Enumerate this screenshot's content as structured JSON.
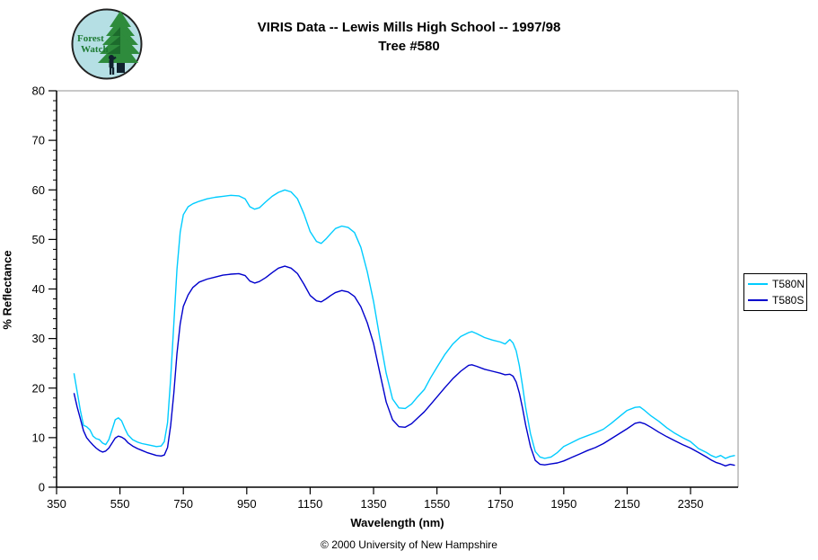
{
  "header": {
    "title": "VIRIS Data -- Lewis Mills High School -- 1997/98",
    "subtitle": "Tree #580"
  },
  "logo": {
    "line1": "Forest",
    "line2": "Watch",
    "bg_color": "#b5dfe4",
    "tree_color": "#2e8b3c",
    "tree_dark_color": "#1c6b2c",
    "trunk_color": "#10212e",
    "text_color": "#1d7a32",
    "border_color": "#222222"
  },
  "footer": {
    "copyright": "© 2000 University of New Hampshire"
  },
  "chart_data": {
    "type": "line",
    "title": "VIRIS Data -- Lewis Mills High School -- 1997/98  Tree #580",
    "xlabel": "Wavelength (nm)",
    "ylabel": "% Reflectance",
    "xlim": [
      350,
      2500
    ],
    "ylim": [
      0,
      80
    ],
    "x_ticks": [
      350,
      550,
      750,
      950,
      1150,
      1350,
      1550,
      1750,
      1950,
      2150,
      2350
    ],
    "y_ticks": [
      0,
      10,
      20,
      30,
      40,
      50,
      60,
      70,
      80
    ],
    "y_minor_step": 2,
    "grid": false,
    "legend_position": "right-outside",
    "frame_color": "#909090",
    "axis_color": "#000000",
    "x": [
      405,
      415,
      425,
      435,
      445,
      455,
      465,
      475,
      485,
      495,
      505,
      515,
      525,
      535,
      545,
      555,
      565,
      575,
      590,
      605,
      620,
      635,
      650,
      665,
      680,
      690,
      700,
      710,
      720,
      730,
      740,
      750,
      765,
      780,
      800,
      825,
      850,
      875,
      900,
      925,
      945,
      960,
      975,
      990,
      1010,
      1030,
      1050,
      1070,
      1090,
      1110,
      1130,
      1150,
      1170,
      1185,
      1200,
      1215,
      1230,
      1250,
      1270,
      1290,
      1310,
      1330,
      1350,
      1370,
      1390,
      1410,
      1430,
      1450,
      1470,
      1490,
      1510,
      1530,
      1550,
      1575,
      1600,
      1625,
      1650,
      1660,
      1675,
      1700,
      1725,
      1750,
      1765,
      1780,
      1790,
      1800,
      1810,
      1820,
      1830,
      1845,
      1860,
      1875,
      1890,
      1910,
      1930,
      1950,
      1975,
      2000,
      2025,
      2050,
      2075,
      2100,
      2125,
      2150,
      2175,
      2190,
      2205,
      2225,
      2250,
      2275,
      2300,
      2325,
      2350,
      2375,
      2400,
      2415,
      2430,
      2445,
      2460,
      2475,
      2490
    ],
    "series": [
      {
        "name": "T580N",
        "color": "#00ccff",
        "values": [
          23.0,
          19.3,
          15.5,
          12.5,
          12.2,
          11.6,
          10.3,
          9.8,
          9.6,
          8.9,
          8.6,
          9.6,
          11.6,
          13.6,
          14.0,
          13.4,
          11.9,
          10.6,
          9.6,
          9.1,
          8.8,
          8.6,
          8.4,
          8.2,
          8.3,
          9.2,
          13.0,
          22.0,
          33.0,
          44.0,
          51.5,
          55.0,
          56.6,
          57.2,
          57.7,
          58.2,
          58.5,
          58.7,
          58.9,
          58.8,
          58.2,
          56.6,
          56.1,
          56.4,
          57.6,
          58.7,
          59.5,
          60.0,
          59.6,
          58.2,
          55.2,
          51.6,
          49.6,
          49.2,
          50.1,
          51.2,
          52.2,
          52.7,
          52.4,
          51.4,
          48.4,
          43.5,
          37.5,
          30.0,
          23.0,
          17.8,
          16.0,
          15.9,
          16.8,
          18.3,
          19.7,
          22.1,
          24.2,
          26.8,
          28.9,
          30.4,
          31.2,
          31.4,
          31.0,
          30.2,
          29.7,
          29.3,
          28.9,
          29.8,
          29.1,
          27.5,
          24.5,
          20.5,
          16.0,
          10.8,
          7.2,
          6.1,
          5.8,
          6.1,
          7.0,
          8.2,
          9.0,
          9.8,
          10.4,
          11.0,
          11.7,
          12.9,
          14.2,
          15.5,
          16.1,
          16.2,
          15.5,
          14.4,
          13.3,
          12.0,
          10.9,
          10.0,
          9.2,
          7.8,
          7.0,
          6.4,
          6.0,
          6.4,
          5.8,
          6.2,
          6.4
        ]
      },
      {
        "name": "T580S",
        "color": "#0000cc",
        "values": [
          19.0,
          16.2,
          13.8,
          11.4,
          10.0,
          9.2,
          8.5,
          7.9,
          7.4,
          7.1,
          7.3,
          7.9,
          8.9,
          9.9,
          10.3,
          10.1,
          9.7,
          9.0,
          8.3,
          7.8,
          7.4,
          7.0,
          6.7,
          6.4,
          6.3,
          6.5,
          8.0,
          12.5,
          19.0,
          27.0,
          33.0,
          36.5,
          38.8,
          40.3,
          41.4,
          42.0,
          42.4,
          42.8,
          43.0,
          43.1,
          42.7,
          41.6,
          41.2,
          41.5,
          42.3,
          43.3,
          44.2,
          44.6,
          44.2,
          43.1,
          41.0,
          38.7,
          37.6,
          37.4,
          38.0,
          38.7,
          39.3,
          39.7,
          39.4,
          38.5,
          36.4,
          33.2,
          29.0,
          23.0,
          17.2,
          13.6,
          12.2,
          12.1,
          12.8,
          14.0,
          15.2,
          16.7,
          18.2,
          20.1,
          21.9,
          23.4,
          24.6,
          24.7,
          24.4,
          23.8,
          23.4,
          23.0,
          22.7,
          22.8,
          22.4,
          21.2,
          19.0,
          16.0,
          12.5,
          8.2,
          5.4,
          4.6,
          4.5,
          4.7,
          4.9,
          5.3,
          6.0,
          6.7,
          7.4,
          8.0,
          8.8,
          9.8,
          10.8,
          11.8,
          12.9,
          13.1,
          12.8,
          12.1,
          11.1,
          10.2,
          9.4,
          8.6,
          7.9,
          7.0,
          6.1,
          5.5,
          5.0,
          4.7,
          4.3,
          4.6,
          4.4
        ]
      }
    ]
  }
}
